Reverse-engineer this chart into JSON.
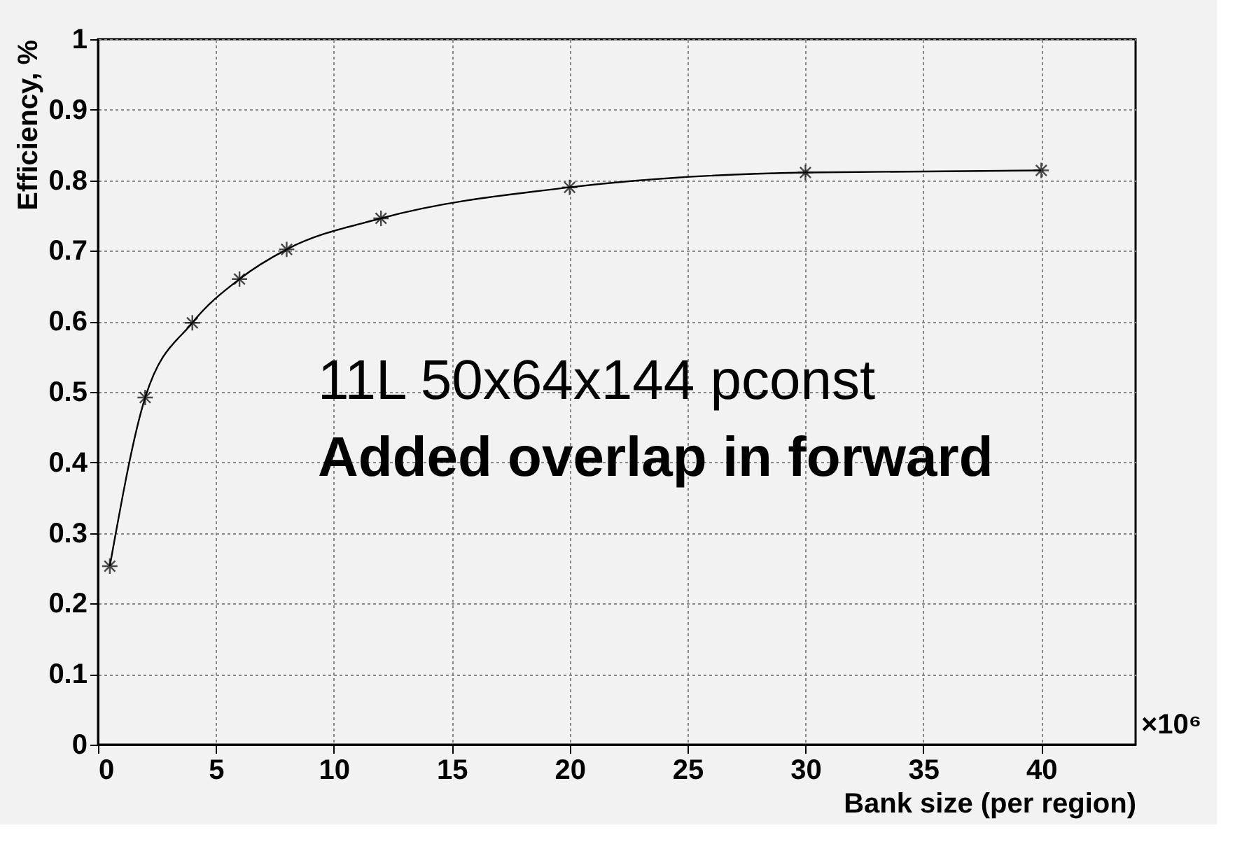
{
  "chart_data": {
    "type": "line",
    "xlabel": "Bank size (per region)",
    "ylabel": "Efficiency, %",
    "x": [
      0.5,
      2,
      4,
      6,
      8,
      12,
      20,
      30,
      40
    ],
    "series": [
      {
        "color": "#000000",
        "values": [
          0.253,
          0.492,
          0.598,
          0.66,
          0.702,
          0.746,
          0.79,
          0.811,
          0.814
        ]
      }
    ],
    "xlim": [
      0,
      44
    ],
    "xticks": [
      0,
      5,
      10,
      15,
      20,
      25,
      30,
      35,
      40
    ],
    "ylim": [
      0,
      1
    ],
    "yticks": [
      0,
      0.1,
      0.2,
      0.3,
      0.4,
      0.5,
      0.6,
      0.7,
      0.8,
      0.9,
      1
    ],
    "grid": true,
    "marker": "cross",
    "line_style": "solid",
    "annotations": [
      "11L 50x64x144 pconst",
      "Added overlap in forward",
      "×10⁶"
    ]
  }
}
